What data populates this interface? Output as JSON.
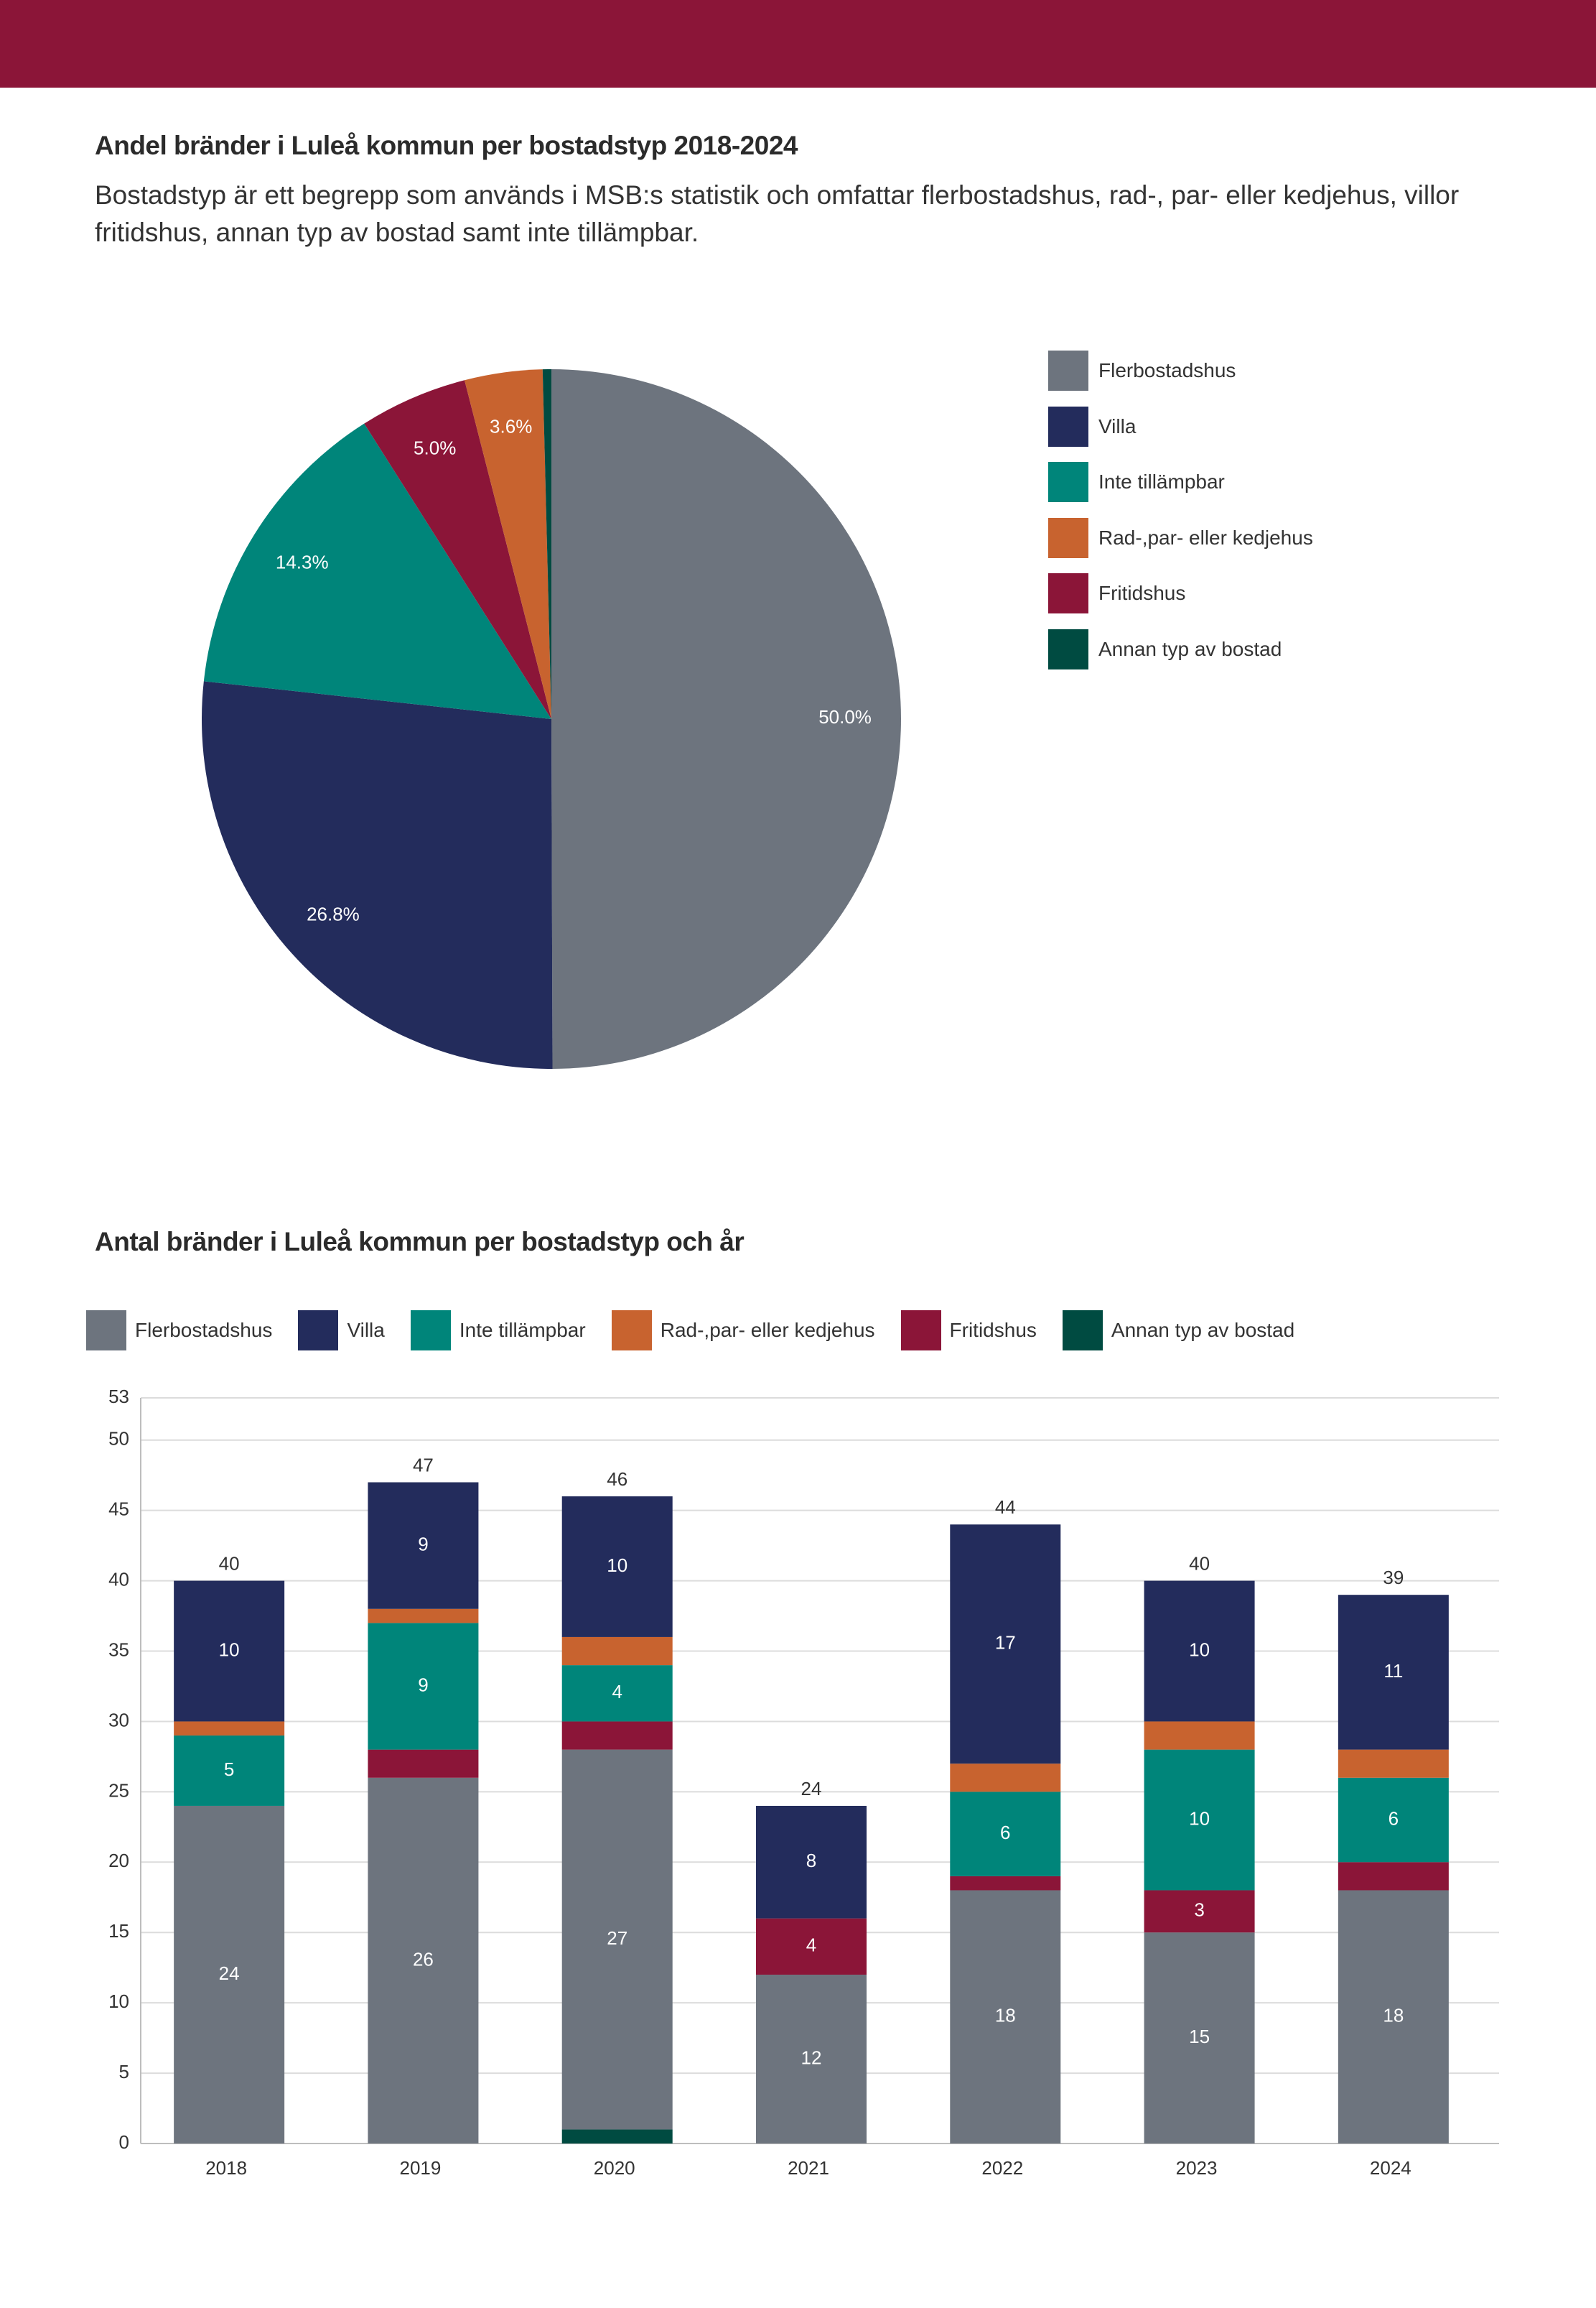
{
  "header": {
    "title": "Andel bränder i Luleå kommun per bostadstyp 2018-2024",
    "description": "Bostadstyp är ett begrepp som används i MSB:s statistik och omfattar flerbostadshus, rad-, par- eller kedjehus, villor fritidshus, annan typ av bostad samt inte tillämpbar.",
    "accent_color": "#8b1538"
  },
  "legend": [
    {
      "label": "Flerbostadshus",
      "color": "#6d747e"
    },
    {
      "label": "Villa",
      "color": "#232c5c"
    },
    {
      "label": "Inte tillämpbar",
      "color": "#00857a"
    },
    {
      "label": "Rad-,par- eller kedjehus",
      "color": "#c8632f"
    },
    {
      "label": "Fritidshus",
      "color": "#8b1538"
    },
    {
      "label": "Annan typ av bostad",
      "color": "#004b41"
    }
  ],
  "bar_section": {
    "title": "Antal bränder i Luleå kommun per bostadstyp och år"
  },
  "chart_data": [
    {
      "type": "pie",
      "title": "Andel bränder i Luleå kommun per bostadstyp 2018-2024",
      "categories": [
        "Flerbostadshus",
        "Villa",
        "Inte tillämpbar",
        "Fritidshus",
        "Rad-,par- eller kedjehus",
        "Annan typ av bostad"
      ],
      "values": [
        50.0,
        26.8,
        14.3,
        5.0,
        3.6,
        0.4
      ],
      "labels": [
        "50.0%",
        "26.8%",
        "14.3%",
        "5.0%",
        "3.6%",
        ""
      ],
      "colors": [
        "#6d747e",
        "#232c5c",
        "#00857a",
        "#8b1538",
        "#c8632f",
        "#004b41"
      ],
      "legend_position": "right"
    },
    {
      "type": "bar",
      "stacked": true,
      "title": "Antal bränder i Luleå kommun per bostadstyp och år",
      "categories": [
        "2018",
        "2019",
        "2020",
        "2021",
        "2022",
        "2023",
        "2024"
      ],
      "ylim": [
        0,
        53
      ],
      "yticks": [
        0,
        5,
        10,
        15,
        20,
        25,
        30,
        35,
        40,
        45,
        50,
        53
      ],
      "grid": true,
      "legend_position": "top",
      "totals": [
        40,
        47,
        46,
        24,
        44,
        40,
        39
      ],
      "series": [
        {
          "name": "Annan typ av bostad",
          "color": "#004b41",
          "values": [
            0,
            0,
            1,
            0,
            0,
            0,
            0
          ],
          "labels": [
            "",
            "",
            "",
            "",
            "",
            "",
            ""
          ]
        },
        {
          "name": "Flerbostadshus",
          "color": "#6d747e",
          "values": [
            24,
            26,
            27,
            12,
            18,
            15,
            18
          ],
          "labels": [
            "24",
            "26",
            "27",
            "12",
            "18",
            "15",
            "18"
          ]
        },
        {
          "name": "Fritidshus",
          "color": "#8b1538",
          "values": [
            0,
            2,
            2,
            4,
            1,
            3,
            2
          ],
          "labels": [
            "",
            "",
            "",
            "4",
            "",
            "3",
            ""
          ]
        },
        {
          "name": "Inte tillämpbar",
          "color": "#00857a",
          "values": [
            5,
            9,
            4,
            0,
            6,
            10,
            6
          ],
          "labels": [
            "5",
            "9",
            "4",
            "",
            "6",
            "10",
            "6"
          ]
        },
        {
          "name": "Rad-,par- eller kedjehus",
          "color": "#c8632f",
          "values": [
            1,
            1,
            2,
            0,
            2,
            2,
            2
          ],
          "labels": [
            "",
            "",
            "",
            "",
            "",
            "",
            ""
          ]
        },
        {
          "name": "Villa",
          "color": "#232c5c",
          "values": [
            10,
            9,
            10,
            8,
            17,
            10,
            11
          ],
          "labels": [
            "10",
            "9",
            "10",
            "8",
            "17",
            "10",
            "11"
          ]
        }
      ]
    }
  ]
}
